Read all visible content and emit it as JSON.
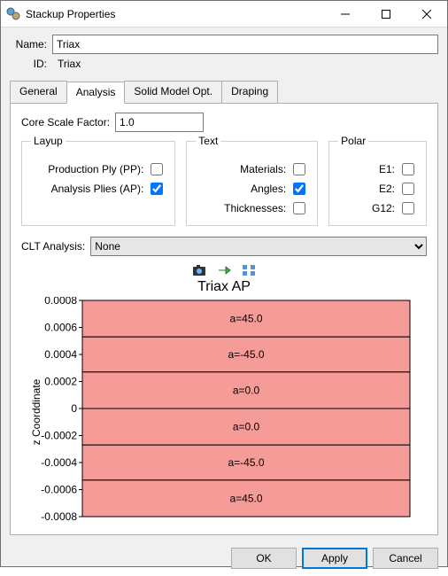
{
  "window": {
    "title": "Stackup Properties"
  },
  "name_label": "Name:",
  "name_value": "Triax",
  "id_label": "ID:",
  "id_value": "Triax",
  "tabs": {
    "general": "General",
    "analysis": "Analysis",
    "solid": "Solid Model Opt.",
    "draping": "Draping"
  },
  "csf": {
    "label": "Core Scale Factor:",
    "value": "1.0"
  },
  "group_layup": {
    "legend": "Layup",
    "pp_label": "Production Ply (PP):",
    "pp_checked": false,
    "ap_label": "Analysis Plies (AP):",
    "ap_checked": true
  },
  "group_text": {
    "legend": "Text",
    "materials_label": "Materials:",
    "materials_checked": false,
    "angles_label": "Angles:",
    "angles_checked": true,
    "thick_label": "Thicknesses:",
    "thick_checked": false
  },
  "group_polar": {
    "legend": "Polar",
    "e1_label": "E1:",
    "e1_checked": false,
    "e2_label": "E2:",
    "e2_checked": false,
    "g12_label": "G12:",
    "g12_checked": false
  },
  "clt": {
    "label": "CLT Analysis:",
    "value": "None"
  },
  "chart": {
    "title": "Triax AP",
    "ylabel": "z Coorddinate",
    "ylim": [
      -0.0008,
      0.0008
    ],
    "yticks": [
      0.0008,
      0.0006,
      0.0004,
      0.0002,
      0,
      -0.0002,
      -0.0004,
      -0.0006,
      -0.0008
    ],
    "ytick_labels": [
      "0.0008",
      "0.0006",
      "0.0004",
      "0.0002",
      "0",
      "-0.0002",
      "-0.0004",
      "-0.0006",
      "-0.0008"
    ],
    "bar_color": "#f59b98",
    "border_color": "#000000",
    "plies": [
      {
        "label": "a=45.0",
        "z0": 0.00053,
        "z1": 0.0008
      },
      {
        "label": "a=-45.0",
        "z0": 0.00027,
        "z1": 0.00053
      },
      {
        "label": "a=0.0",
        "z0": 0.0,
        "z1": 0.00027
      },
      {
        "label": "a=0.0",
        "z0": -0.00027,
        "z1": 0.0
      },
      {
        "label": "a=-45.0",
        "z0": -0.00053,
        "z1": -0.00027
      },
      {
        "label": "a=45.0",
        "z0": -0.0008,
        "z1": -0.00053
      }
    ]
  },
  "buttons": {
    "ok": "OK",
    "apply": "Apply",
    "cancel": "Cancel"
  }
}
